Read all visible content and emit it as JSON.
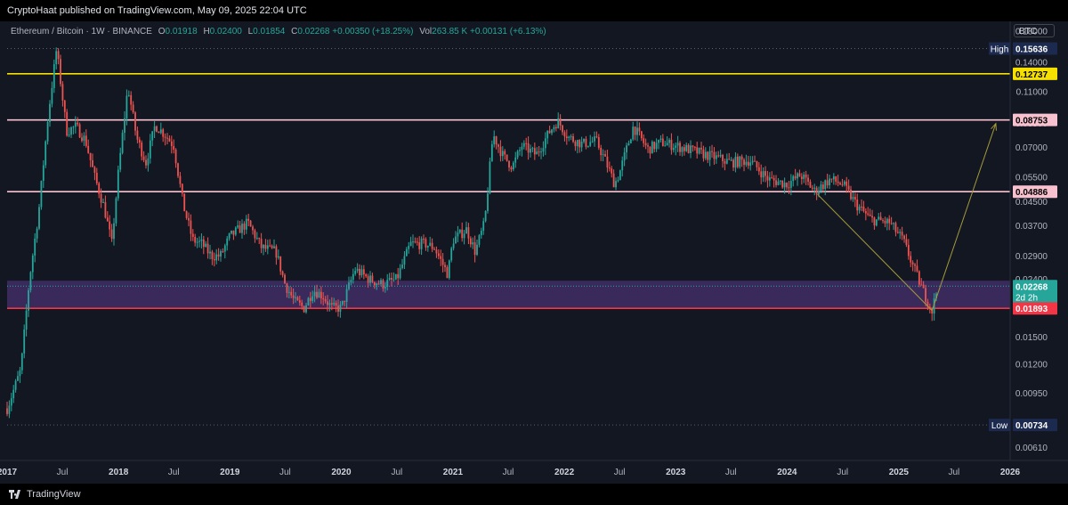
{
  "header": {
    "published": "CryptoHaat published on TradingView.com, May 09, 2025 22:04 UTC"
  },
  "legend": {
    "symbol": "Ethereum / Bitcoin · 1W · BINANCE",
    "open_label": "O",
    "open": "0.01918",
    "high_label": "H",
    "high": "0.02400",
    "low_label": "L",
    "low": "0.01854",
    "close_label": "C",
    "close": "0.02268",
    "change": "+0.00350 (+18.25%)",
    "vol_label": "Vol",
    "vol": "263.85 K",
    "vol_change": "+0.00131 (+6.13%)"
  },
  "currency_button": "BTC",
  "footer": {
    "brand": "TradingView"
  },
  "colors": {
    "up": "#26a69a",
    "down": "#ef5350",
    "yellow": "#f5e000",
    "pink": "#f7c1cf",
    "red": "#f23645",
    "zone": "#5b3a8c",
    "arrow": "#a39a3a"
  },
  "chart_data": {
    "type": "candlestick",
    "symbol": "ETH/BTC",
    "timeframe": "1W",
    "y_scale": "log",
    "ylim": [
      0.0055,
      0.195
    ],
    "xlim": [
      "2017-01-01",
      "2026-01-01"
    ],
    "y_ticks": [
      "0.18000",
      "0.14000",
      "0.11000",
      "0.08500",
      "0.07000",
      "0.05500",
      "0.04500",
      "0.03700",
      "0.02900",
      "0.02400",
      "0.01500",
      "0.01200",
      "0.00950",
      "0.00610"
    ],
    "x_ticks": [
      {
        "label": "2017",
        "date": "2017-01-01"
      },
      {
        "label": "Jul",
        "date": "2017-07-01"
      },
      {
        "label": "2018",
        "date": "2018-01-01"
      },
      {
        "label": "Jul",
        "date": "2018-07-01"
      },
      {
        "label": "2019",
        "date": "2019-01-01"
      },
      {
        "label": "Jul",
        "date": "2019-07-01"
      },
      {
        "label": "2020",
        "date": "2020-01-01"
      },
      {
        "label": "Jul",
        "date": "2020-07-01"
      },
      {
        "label": "2021",
        "date": "2021-01-01"
      },
      {
        "label": "Jul",
        "date": "2021-07-01"
      },
      {
        "label": "2022",
        "date": "2022-01-01"
      },
      {
        "label": "Jul",
        "date": "2022-07-01"
      },
      {
        "label": "2023",
        "date": "2023-01-01"
      },
      {
        "label": "Jul",
        "date": "2023-07-01"
      },
      {
        "label": "2024",
        "date": "2024-01-01"
      },
      {
        "label": "Jul",
        "date": "2024-07-01"
      },
      {
        "label": "2025",
        "date": "2025-01-01"
      },
      {
        "label": "Jul",
        "date": "2025-07-01"
      },
      {
        "label": "2026",
        "date": "2026-01-01"
      }
    ],
    "price_path": [
      [
        "2017-01-01",
        0.0084
      ],
      [
        "2017-02-15",
        0.0115
      ],
      [
        "2017-03-15",
        0.024
      ],
      [
        "2017-04-15",
        0.042
      ],
      [
        "2017-05-15",
        0.09
      ],
      [
        "2017-06-12",
        0.156
      ],
      [
        "2017-07-15",
        0.08
      ],
      [
        "2017-08-15",
        0.083
      ],
      [
        "2017-09-15",
        0.074
      ],
      [
        "2017-10-15",
        0.055
      ],
      [
        "2017-11-15",
        0.043
      ],
      [
        "2017-12-10",
        0.032
      ],
      [
        "2018-01-01",
        0.058
      ],
      [
        "2018-02-01",
        0.115
      ],
      [
        "2018-03-01",
        0.076
      ],
      [
        "2018-04-01",
        0.062
      ],
      [
        "2018-05-01",
        0.084
      ],
      [
        "2018-06-01",
        0.078
      ],
      [
        "2018-07-01",
        0.071
      ],
      [
        "2018-08-01",
        0.044
      ],
      [
        "2018-09-01",
        0.033
      ],
      [
        "2018-10-01",
        0.032
      ],
      [
        "2018-11-01",
        0.029
      ],
      [
        "2018-12-01",
        0.029
      ],
      [
        "2019-01-01",
        0.034
      ],
      [
        "2019-03-01",
        0.038
      ],
      [
        "2019-04-15",
        0.031
      ],
      [
        "2019-06-01",
        0.03
      ],
      [
        "2019-07-01",
        0.023
      ],
      [
        "2019-08-01",
        0.02
      ],
      [
        "2019-09-01",
        0.019
      ],
      [
        "2019-10-01",
        0.022
      ],
      [
        "2019-11-01",
        0.021
      ],
      [
        "2019-12-01",
        0.019
      ],
      [
        "2020-01-01",
        0.019
      ],
      [
        "2020-02-15",
        0.026
      ],
      [
        "2020-04-01",
        0.024
      ],
      [
        "2020-05-15",
        0.023
      ],
      [
        "2020-07-01",
        0.024
      ],
      [
        "2020-08-15",
        0.032
      ],
      [
        "2020-10-01",
        0.032
      ],
      [
        "2020-11-01",
        0.031
      ],
      [
        "2020-12-15",
        0.025
      ],
      [
        "2021-01-01",
        0.033
      ],
      [
        "2021-02-15",
        0.036
      ],
      [
        "2021-03-15",
        0.03
      ],
      [
        "2021-04-15",
        0.038
      ],
      [
        "2021-05-12",
        0.078
      ],
      [
        "2021-06-15",
        0.065
      ],
      [
        "2021-07-15",
        0.06
      ],
      [
        "2021-08-15",
        0.071
      ],
      [
        "2021-10-01",
        0.066
      ],
      [
        "2021-11-15",
        0.08
      ],
      [
        "2021-12-10",
        0.087
      ],
      [
        "2022-01-15",
        0.076
      ],
      [
        "2022-03-01",
        0.072
      ],
      [
        "2022-04-15",
        0.074
      ],
      [
        "2022-05-15",
        0.063
      ],
      [
        "2022-06-15",
        0.052
      ],
      [
        "2022-07-01",
        0.057
      ],
      [
        "2022-08-15",
        0.083
      ],
      [
        "2022-10-01",
        0.069
      ],
      [
        "2022-11-15",
        0.073
      ],
      [
        "2023-01-01",
        0.071
      ],
      [
        "2023-03-01",
        0.068
      ],
      [
        "2023-05-01",
        0.065
      ],
      [
        "2023-07-01",
        0.062
      ],
      [
        "2023-09-01",
        0.063
      ],
      [
        "2023-11-01",
        0.054
      ],
      [
        "2024-01-01",
        0.052
      ],
      [
        "2024-02-15",
        0.056
      ],
      [
        "2024-04-01",
        0.049
      ],
      [
        "2024-05-20",
        0.054
      ],
      [
        "2024-07-01",
        0.052
      ],
      [
        "2024-08-15",
        0.044
      ],
      [
        "2024-10-01",
        0.039
      ],
      [
        "2024-12-01",
        0.038
      ],
      [
        "2025-01-15",
        0.033
      ],
      [
        "2025-02-15",
        0.027
      ],
      [
        "2025-03-20",
        0.022
      ],
      [
        "2025-04-20",
        0.0186
      ],
      [
        "2025-05-09",
        0.0227
      ]
    ],
    "levels": [
      {
        "label": "High",
        "value": 0.15636,
        "text": "0.15636",
        "kind": "high"
      },
      {
        "value": 0.12737,
        "text": "0.12737",
        "kind": "yellow"
      },
      {
        "value": 0.08753,
        "text": "0.08753",
        "kind": "pink"
      },
      {
        "value": 0.04886,
        "text": "0.04886",
        "kind": "pink"
      },
      {
        "value": 0.02268,
        "text": "0.02268",
        "sub": "2d 2h",
        "kind": "last"
      },
      {
        "value": 0.01893,
        "text": "0.01893",
        "kind": "red"
      },
      {
        "label": "Low",
        "value": 0.00734,
        "text": "0.00734",
        "kind": "low"
      }
    ],
    "zone": {
      "from": 0.01893,
      "to": 0.0237
    },
    "trend_line": {
      "from": [
        "2024-04-10",
        0.0478
      ],
      "to": [
        "2025-04-20",
        0.0186
      ]
    },
    "projection_arrow": {
      "from": [
        "2025-04-20",
        0.0186
      ],
      "to": [
        "2025-11-15",
        0.085
      ]
    }
  }
}
